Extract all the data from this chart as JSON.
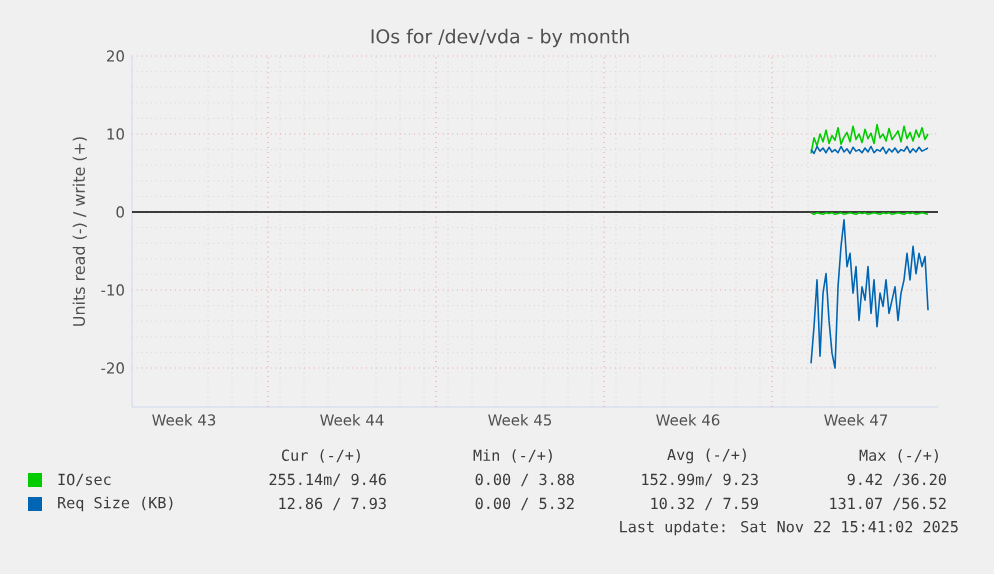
{
  "chart_data": {
    "type": "line",
    "title": "IOs for /dev/vda - by month",
    "ylabel": "Units read (-) / write (+)",
    "xlim": [
      "2025-10-21T08:00",
      "2025-11-23T22:00"
    ],
    "ylim": [
      -25,
      20
    ],
    "xticks": [
      {
        "value": "2025-10-23T12:00",
        "label": "Week 43"
      },
      {
        "value": "2025-10-30T12:00",
        "label": "Week 44"
      },
      {
        "value": "2025-11-06T12:00",
        "label": "Week 45"
      },
      {
        "value": "2025-11-13T12:00",
        "label": "Week 46"
      },
      {
        "value": "2025-11-20T12:00",
        "label": "Week 47"
      },
      {
        "value": "2025-10-27",
        "label": null
      },
      {
        "value": "2025-11-03",
        "label": null
      },
      {
        "value": "2025-11-10",
        "label": null
      },
      {
        "value": "2025-11-17",
        "label": null
      }
    ],
    "yticks": [
      -20,
      -10,
      0,
      10,
      20
    ],
    "grid": true,
    "legend": "bottom",
    "ref_lines": [
      {
        "axis": "y",
        "value": 0,
        "color": "#000000"
      }
    ],
    "x": [
      "2025-11-18T15:00",
      "2025-11-18T18:00",
      "2025-11-18T21:00",
      "2025-11-19T00:00",
      "2025-11-19T03:00",
      "2025-11-19T06:00",
      "2025-11-19T09:00",
      "2025-11-19T12:00",
      "2025-11-19T15:00",
      "2025-11-19T18:00",
      "2025-11-19T21:00",
      "2025-11-20T00:00",
      "2025-11-20T03:00",
      "2025-11-20T06:00",
      "2025-11-20T09:00",
      "2025-11-20T12:00",
      "2025-11-20T15:00",
      "2025-11-20T18:00",
      "2025-11-20T21:00",
      "2025-11-21T00:00",
      "2025-11-21T03:00",
      "2025-11-21T06:00",
      "2025-11-21T09:00",
      "2025-11-21T12:00",
      "2025-11-21T15:00",
      "2025-11-21T18:00",
      "2025-11-21T21:00",
      "2025-11-22T00:00",
      "2025-11-22T03:00",
      "2025-11-22T06:00",
      "2025-11-22T09:00",
      "2025-11-22T12:00",
      "2025-11-22T15:00",
      "2025-11-22T18:00",
      "2025-11-22T21:00",
      "2025-11-23T00:00",
      "2025-11-23T03:00",
      "2025-11-23T06:00",
      "2025-11-23T09:00",
      "2025-11-23T12:00"
    ],
    "series": [
      {
        "name": "IO/sec",
        "color": "#00cc00",
        "values": [
          7.5,
          9.5,
          8.5,
          10.0,
          9.0,
          10.5,
          8.8,
          9.8,
          9.2,
          10.8,
          8.7,
          9.6,
          10.2,
          9.0,
          11.0,
          9.3,
          10.0,
          8.9,
          10.6,
          9.4,
          10.1,
          8.8,
          11.2,
          9.5,
          10.0,
          9.1,
          10.7,
          9.3,
          9.8,
          10.4,
          9.0,
          11.0,
          9.4,
          10.2,
          9.1,
          10.5,
          9.6,
          10.8,
          9.3,
          10.0
        ]
      },
      {
        "color": "#00cc00",
        "values": [
          -0.1,
          -0.3,
          -0.1,
          -0.2,
          -0.3,
          -0.1,
          -0.2,
          -0.1,
          -0.3,
          -0.2,
          -0.1,
          -0.3,
          -0.2,
          -0.1,
          -0.2,
          -0.3,
          -0.1,
          -0.2,
          -0.1,
          -0.3,
          -0.2,
          -0.1,
          -0.2,
          -0.3,
          -0.1,
          -0.2,
          -0.1,
          -0.3,
          -0.2,
          -0.1,
          -0.2,
          -0.3,
          -0.1,
          -0.2,
          -0.1,
          -0.3,
          -0.2,
          -0.1,
          -0.2,
          -0.3
        ]
      },
      {
        "name": "Req Size (KB)",
        "color": "#0066b3",
        "values": [
          8.0,
          7.5,
          8.4,
          7.8,
          8.2,
          7.6,
          8.3,
          7.7,
          8.0,
          7.6,
          8.4,
          7.7,
          8.1,
          7.5,
          8.3,
          7.8,
          8.0,
          7.6,
          8.2,
          7.7,
          8.4,
          7.6,
          8.0,
          7.8,
          8.3,
          7.5,
          8.1,
          7.7,
          8.2,
          7.6,
          8.0,
          7.8,
          8.4,
          7.6,
          8.1,
          7.7,
          8.3,
          7.8,
          8.0,
          8.2
        ]
      },
      {
        "color": "#0066b3",
        "values": [
          -19.4,
          -14.7,
          -8.7,
          -18.5,
          -10.4,
          -7.9,
          -13.9,
          -18.1,
          -20.0,
          -9.6,
          -4.4,
          -1.0,
          -7.0,
          -5.3,
          -10.4,
          -7.0,
          -13.9,
          -9.6,
          -11.3,
          -7.0,
          -13.0,
          -8.7,
          -14.7,
          -10.4,
          -12.1,
          -8.7,
          -13.0,
          -11.3,
          -9.6,
          -13.9,
          -10.4,
          -8.7,
          -5.3,
          -8.7,
          -4.4,
          -7.9,
          -5.3,
          -7.0,
          -5.7,
          -12.6
        ]
      }
    ],
    "annotations": [
      "Cur (-/+)",
      "Min (-/+)",
      "Avg (-/+)",
      "Max (-/+)",
      "255.14m/ 9.46",
      "0.00 / 3.88",
      "152.99m/ 9.23",
      "9.42 /36.20",
      "12.86 / 7.93",
      "0.00 / 5.32",
      "10.32 / 7.59",
      "131.07 /56.52",
      "Last update: Sat Nov 22 15:41:02 2025"
    ]
  }
}
